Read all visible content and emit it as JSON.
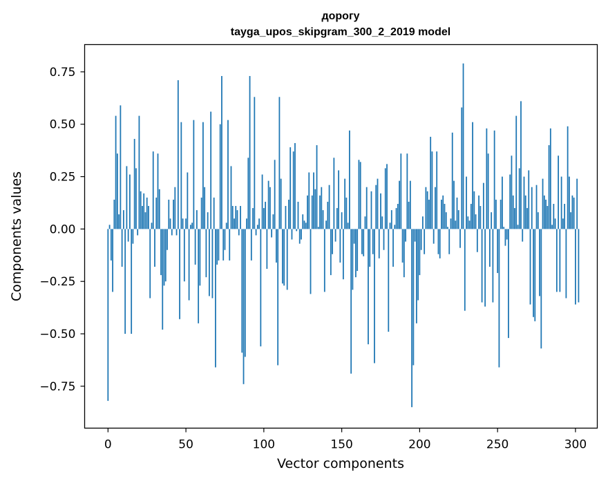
{
  "chart_data": {
    "type": "bar",
    "title": "дорогу",
    "subtitle": "tayga_upos_skipgram_300_2_2019 model",
    "xlabel": "Vector components",
    "ylabel": "Components values",
    "xlim": [
      -15,
      314
    ],
    "ylim": [
      -0.95,
      0.88
    ],
    "xticks": [
      0,
      50,
      100,
      150,
      200,
      250,
      300
    ],
    "yticks": [
      -0.75,
      -0.5,
      -0.25,
      0.0,
      0.25,
      0.5,
      0.75
    ],
    "xtick_labels": [
      "0",
      "50",
      "100",
      "150",
      "200",
      "250",
      "300"
    ],
    "ytick_labels": [
      "−0.75",
      "−0.50",
      "−0.25",
      "0.00",
      "0.25",
      "0.50",
      "0.75"
    ],
    "bar_color": "#1f77b4",
    "grid": false,
    "values": [
      -0.82,
      0.02,
      -0.15,
      -0.3,
      0.14,
      0.54,
      0.36,
      0.07,
      0.59,
      -0.18,
      0.09,
      -0.5,
      0.3,
      -0.06,
      0.26,
      -0.5,
      -0.07,
      0.43,
      0.29,
      -0.03,
      0.54,
      0.18,
      0.11,
      0.17,
      0.08,
      0.15,
      0.11,
      -0.33,
      0.03,
      0.37,
      -0.18,
      0.15,
      0.36,
      0.19,
      -0.22,
      -0.48,
      -0.27,
      -0.25,
      -0.1,
      0.14,
      0.05,
      -0.03,
      0.14,
      0.2,
      -0.03,
      0.71,
      -0.43,
      0.51,
      0.05,
      -0.25,
      0.05,
      0.27,
      -0.34,
      0.02,
      0.03,
      0.52,
      -0.17,
      0.09,
      -0.45,
      -0.27,
      0.15,
      0.51,
      0.2,
      -0.23,
      0.08,
      -0.32,
      0.56,
      -0.33,
      0.15,
      -0.66,
      -0.17,
      -0.15,
      0.5,
      0.73,
      -0.15,
      -0.1,
      0.03,
      0.52,
      -0.15,
      0.3,
      0.11,
      0.05,
      0.11,
      0.09,
      -0.03,
      0.11,
      -0.59,
      -0.74,
      -0.61,
      0.05,
      0.34,
      0.73,
      -0.15,
      0.1,
      0.63,
      -0.03,
      0.02,
      0.05,
      -0.56,
      0.26,
      0.1,
      0.13,
      -0.19,
      0.23,
      0.2,
      -0.04,
      0.07,
      0.33,
      -0.16,
      -0.65,
      0.63,
      0.24,
      -0.26,
      -0.27,
      0.11,
      -0.29,
      0.14,
      0.39,
      -0.05,
      0.37,
      0.41,
      -0.01,
      0.13,
      -0.07,
      -0.05,
      0.07,
      0.04,
      0.03,
      0.16,
      0.27,
      -0.31,
      0.16,
      0.27,
      0.19,
      0.4,
      0.01,
      0.16,
      0.2,
      0.09,
      -0.3,
      0.04,
      0.13,
      0.21,
      -0.22,
      -0.12,
      0.34,
      -0.06,
      0.1,
      0.28,
      -0.16,
      0.08,
      -0.24,
      0.24,
      0.15,
      0.03,
      0.47,
      -0.69,
      -0.29,
      -0.07,
      -0.23,
      -0.2,
      0.33,
      0.32,
      -0.12,
      -0.13,
      0.06,
      0.2,
      -0.55,
      -0.18,
      0.18,
      -0.12,
      -0.64,
      0.21,
      0.24,
      -0.14,
      0.17,
      0.06,
      -0.1,
      0.29,
      0.31,
      -0.49,
      0.03,
      0.09,
      -0.18,
      0.02,
      0.1,
      0.12,
      0.23,
      0.36,
      -0.16,
      -0.23,
      -0.06,
      0.36,
      0.13,
      0.23,
      -0.85,
      -0.65,
      -0.06,
      -0.45,
      -0.34,
      -0.22,
      -0.1,
      0.06,
      -0.12,
      0.2,
      0.18,
      0.14,
      0.44,
      0.37,
      -0.07,
      0.2,
      0.37,
      -0.12,
      -0.14,
      0.14,
      0.16,
      0.12,
      0.08,
      0.01,
      -0.12,
      0.05,
      0.46,
      0.23,
      0.04,
      0.15,
      0.09,
      -0.09,
      0.58,
      0.79,
      -0.39,
      0.25,
      0.06,
      0.04,
      0.12,
      0.51,
      0.18,
      0.07,
      -0.11,
      0.16,
      0.11,
      -0.35,
      0.22,
      -0.37,
      0.48,
      0.36,
      -0.18,
      0.08,
      -0.35,
      0.47,
      0.14,
      -0.21,
      -0.66,
      0.14,
      0.25,
      0.01,
      -0.08,
      -0.05,
      -0.52,
      0.26,
      0.35,
      0.16,
      0.1,
      0.54,
      0.02,
      0.29,
      0.61,
      -0.06,
      0.25,
      0.16,
      0.1,
      0.28,
      -0.36,
      0.2,
      -0.42,
      -0.44,
      0.21,
      0.08,
      -0.32,
      -0.57,
      0.24,
      0.16,
      0.14,
      0.11,
      0.4,
      0.48,
      0.02,
      0.12,
      0.05,
      -0.3,
      0.35,
      -0.3,
      0.25,
      0.05,
      0.12,
      -0.33,
      0.49,
      0.25,
      0.08,
      0.16,
      0.15,
      -0.36,
      0.24,
      -0.35
    ]
  }
}
